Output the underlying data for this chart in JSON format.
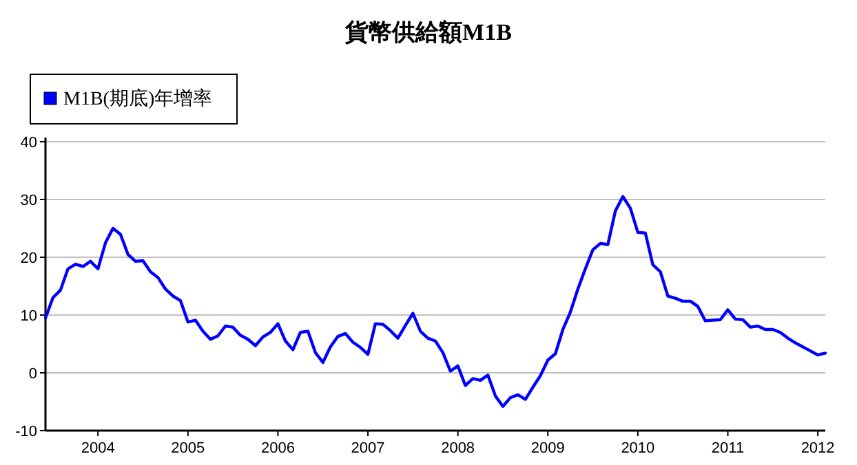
{
  "chart_data": {
    "type": "line",
    "title": "貨幣供給額M1B",
    "x": [
      "2003-06",
      "2003-07",
      "2003-08",
      "2003-09",
      "2003-10",
      "2003-11",
      "2003-12",
      "2004-01",
      "2004-02",
      "2004-03",
      "2004-04",
      "2004-05",
      "2004-06",
      "2004-07",
      "2004-08",
      "2004-09",
      "2004-10",
      "2004-11",
      "2004-12",
      "2005-01",
      "2005-02",
      "2005-03",
      "2005-04",
      "2005-05",
      "2005-06",
      "2005-07",
      "2005-08",
      "2005-09",
      "2005-10",
      "2005-11",
      "2005-12",
      "2006-01",
      "2006-02",
      "2006-03",
      "2006-04",
      "2006-05",
      "2006-06",
      "2006-07",
      "2006-08",
      "2006-09",
      "2006-10",
      "2006-11",
      "2006-12",
      "2007-01",
      "2007-02",
      "2007-03",
      "2007-04",
      "2007-05",
      "2007-06",
      "2007-07",
      "2007-08",
      "2007-09",
      "2007-10",
      "2007-11",
      "2007-12",
      "2008-01",
      "2008-02",
      "2008-03",
      "2008-04",
      "2008-05",
      "2008-06",
      "2008-07",
      "2008-08",
      "2008-09",
      "2008-10",
      "2008-11",
      "2008-12",
      "2009-01",
      "2009-02",
      "2009-03",
      "2009-04",
      "2009-05",
      "2009-06",
      "2009-07",
      "2009-08",
      "2009-09",
      "2009-10",
      "2009-11",
      "2009-12",
      "2010-01",
      "2010-02",
      "2010-03",
      "2010-04",
      "2010-05",
      "2010-06",
      "2010-07",
      "2010-08",
      "2010-09",
      "2010-10",
      "2010-11",
      "2010-12",
      "2011-01",
      "2011-02",
      "2011-03",
      "2011-04",
      "2011-05",
      "2011-06",
      "2011-07",
      "2011-08",
      "2011-09",
      "2011-10",
      "2011-11",
      "2011-12",
      "2012-01",
      "2012-02"
    ],
    "series": [
      {
        "name": "M1B(期底)年增率",
        "color": "#0000ff",
        "values": [
          9.5,
          13,
          14.3,
          18,
          18.8,
          18.4,
          19.3,
          18,
          22.5,
          25,
          24,
          20.5,
          19.3,
          19.4,
          17.5,
          16.5,
          14.5,
          13.3,
          12.5,
          8.8,
          9.1,
          7.2,
          5.8,
          6.4,
          8.1,
          7.9,
          6.5,
          5.8,
          4.7,
          6.2,
          7,
          8.5,
          5.5,
          4,
          7,
          7.2,
          3.5,
          1.8,
          4.5,
          6.3,
          6.8,
          5.3,
          4.4,
          3.2,
          8.5,
          8.4,
          7.3,
          6,
          8.2,
          10.3,
          7.2,
          6,
          5.5,
          3.5,
          0.3,
          1.2,
          -2.2,
          -1,
          -1.3,
          -0.4,
          -4,
          -5.8,
          -4.3,
          -3.8,
          -4.6,
          -2.5,
          -0.5,
          2.2,
          3.3,
          7.5,
          10.5,
          14.5,
          18,
          21.3,
          22.4,
          22.2,
          28,
          30.5,
          28.5,
          24.3,
          24.2,
          18.7,
          17.5,
          13.3,
          12.9,
          12.4,
          12.4,
          11.5,
          9,
          9.1,
          9.2,
          10.9,
          9.3,
          9.2,
          7.9,
          8.1,
          7.5,
          7.5,
          7,
          6,
          5.2,
          4.5,
          3.8,
          3.1,
          3.4
        ]
      }
    ],
    "xlim": [
      "2003-06",
      "2012-02"
    ],
    "xticks": [
      "2004",
      "2005",
      "2006",
      "2007",
      "2008",
      "2009",
      "2010",
      "2011",
      "2012"
    ],
    "ylim": [
      -10,
      40
    ],
    "yticks": [
      -10,
      0,
      10,
      20,
      30,
      40
    ],
    "grid": "y",
    "legend": "top left"
  }
}
